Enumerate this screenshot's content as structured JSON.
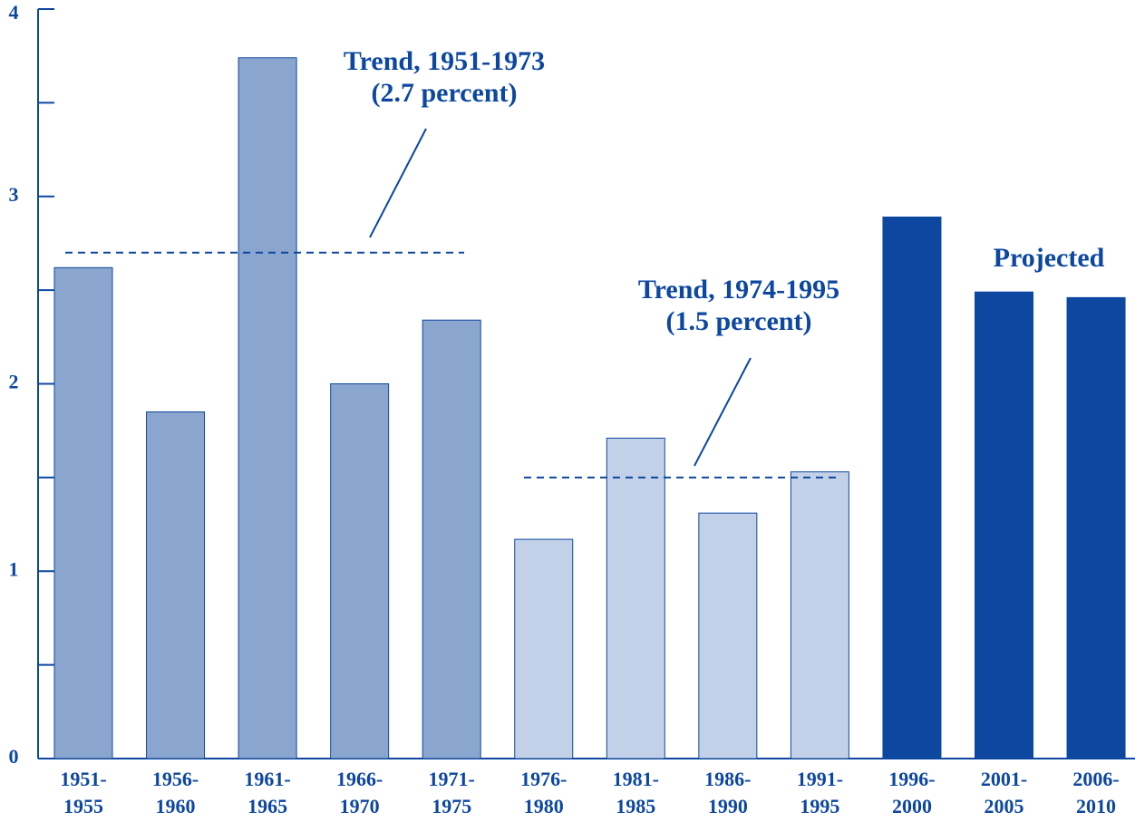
{
  "chart_data": {
    "type": "bar",
    "categories": [
      [
        "1951-",
        "1955"
      ],
      [
        "1956-",
        "1960"
      ],
      [
        "1961-",
        "1965"
      ],
      [
        "1966-",
        "1970"
      ],
      [
        "1971-",
        "1975"
      ],
      [
        "1976-",
        "1980"
      ],
      [
        "1981-",
        "1985"
      ],
      [
        "1986-",
        "1990"
      ],
      [
        "1991-",
        "1995"
      ],
      [
        "1996-",
        "2000"
      ],
      [
        "2001-",
        "2005"
      ],
      [
        "2006-",
        "2010"
      ]
    ],
    "values": [
      2.62,
      1.85,
      3.74,
      2.0,
      2.34,
      1.17,
      1.71,
      1.31,
      1.53,
      2.89,
      2.49,
      2.46
    ],
    "colors": [
      "#8aa6cf",
      "#8aa6cf",
      "#8aa6cf",
      "#8aa6cf",
      "#8aa6cf",
      "#c3d1e8",
      "#c3d1e8",
      "#c3d1e8",
      "#c3d1e8",
      "#0d47a0",
      "#0d47a0",
      "#0d47a0"
    ],
    "ylim": [
      0,
      4
    ],
    "yticks": [
      0,
      1,
      2,
      3,
      4
    ],
    "minor_yticks": [
      0.5,
      1.5,
      2.5,
      3.5
    ],
    "trends": [
      {
        "text": [
          "Trend, 1951-1973",
          "(2.7 percent)"
        ],
        "value": 2.7
      },
      {
        "text": [
          "Trend, 1974-1995",
          "(1.5 percent)"
        ],
        "value": 1.5
      }
    ],
    "annotation": "Projected"
  }
}
